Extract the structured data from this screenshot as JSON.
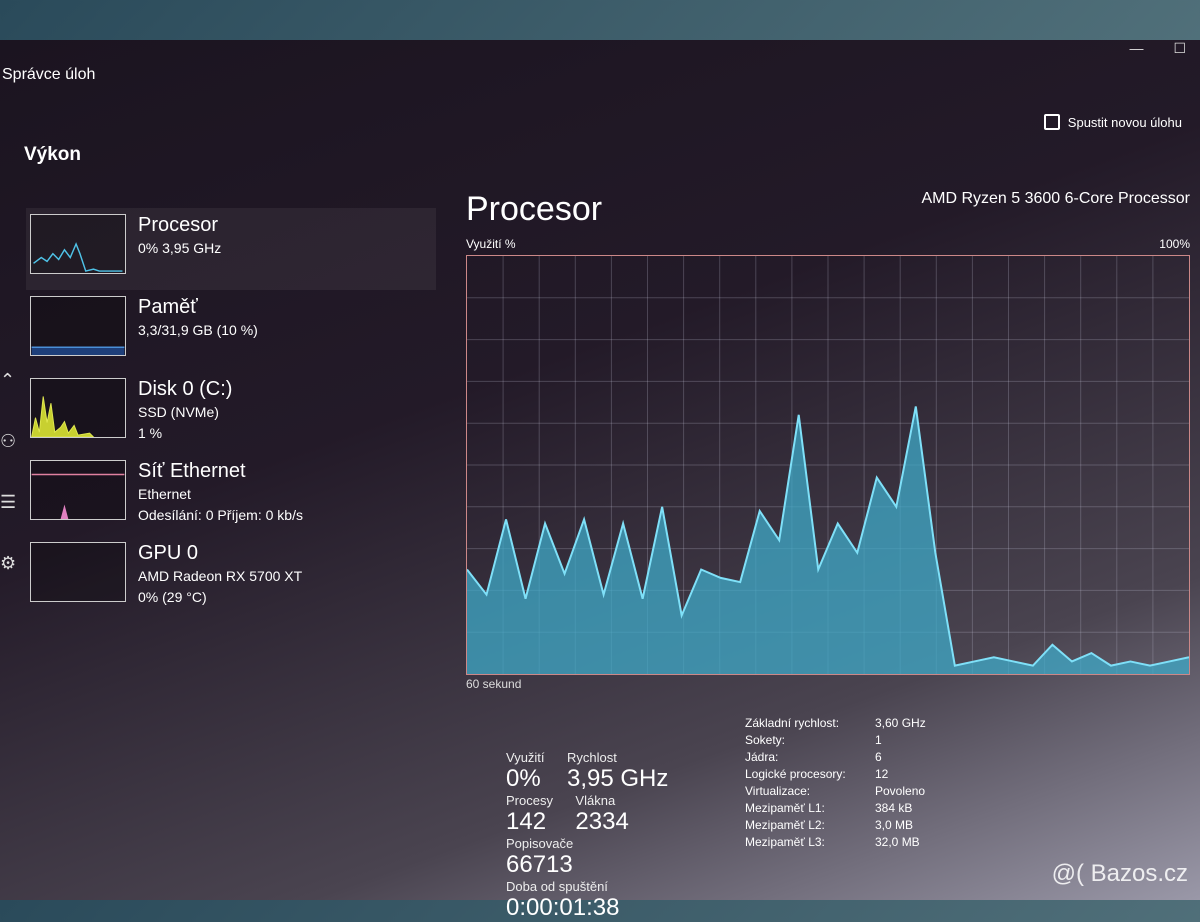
{
  "window": {
    "title": "Správce úloh",
    "minimize_icon": "minimize-icon",
    "maximize_icon": "maximize-icon"
  },
  "header": {
    "title": "Výkon",
    "new_task_label": "Spustit novou úlohu"
  },
  "sidebar": {
    "items": [
      {
        "name": "Procesor",
        "sub1": "0% 3,95 GHz",
        "sub2": "",
        "sub3": "",
        "color": "#4fc3e8"
      },
      {
        "name": "Paměť",
        "sub1": "3,3/31,9 GB (10 %)",
        "sub2": "",
        "sub3": "",
        "color": "#4a8fd8"
      },
      {
        "name": "Disk 0 (C:)",
        "sub1": "SSD (NVMe)",
        "sub2": "1 %",
        "sub3": "",
        "color": "#d8e040"
      },
      {
        "name": "Síť Ethernet",
        "sub1": "Ethernet",
        "sub2": "Odesílání: 0 Příjem: 0 kb/s",
        "sub3": "",
        "color": "#e080c0"
      },
      {
        "name": "GPU 0",
        "sub1": "AMD Radeon RX 5700 XT",
        "sub2": "0% (29 °C)",
        "sub3": "",
        "color": "#b070d0"
      }
    ]
  },
  "main": {
    "title": "Procesor",
    "cpu_name": "AMD Ryzen 5 3600 6-Core Processor",
    "y_label": "Využití %",
    "x_label": "60 sekund",
    "y_max": "100%",
    "stats": {
      "utilization_label": "Využití",
      "utilization": "0%",
      "speed_label": "Rychlost",
      "speed": "3,95 GHz",
      "processes_label": "Procesy",
      "processes": "142",
      "threads_label": "Vlákna",
      "threads": "2334",
      "handles_label": "Popisovače",
      "handles": "66713",
      "uptime_label": "Doba od spuštění",
      "uptime": "0:00:01:38"
    },
    "specs": [
      {
        "label": "Základní rychlost:",
        "value": "3,60 GHz"
      },
      {
        "label": "Sokety:",
        "value": "1"
      },
      {
        "label": "Jádra:",
        "value": "6"
      },
      {
        "label": "Logické procesory:",
        "value": "12"
      },
      {
        "label": "Virtualizace:",
        "value": "Povoleno"
      },
      {
        "label": "Mezipaměť L1:",
        "value": "384 kB"
      },
      {
        "label": "Mezipaměť L2:",
        "value": "3,0 MB"
      },
      {
        "label": "Mezipaměť L3:",
        "value": "32,0 MB"
      }
    ]
  },
  "chart_data": {
    "type": "area",
    "ylabel": "Využití %",
    "xlabel": "60 sekund",
    "ylim": [
      0,
      100
    ],
    "grid": true,
    "color": "#3fa9c8",
    "values": [
      25,
      19,
      37,
      18,
      36,
      24,
      37,
      19,
      36,
      18,
      40,
      14,
      25,
      23,
      22,
      39,
      32,
      62,
      25,
      36,
      29,
      47,
      40,
      64,
      29,
      2,
      3,
      4,
      3,
      2,
      7,
      3,
      5,
      2,
      3,
      2,
      3,
      4
    ]
  },
  "watermark": "@( Bazos.cz"
}
